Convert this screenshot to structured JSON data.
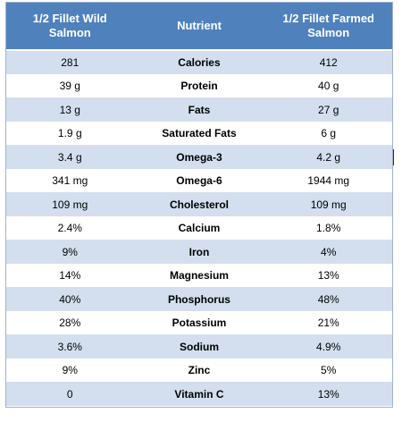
{
  "table": {
    "headers": [
      "1/2 Fillet Wild Salmon",
      "Nutrient",
      "1/2 Fillet Farmed Salmon"
    ],
    "rows": [
      [
        "281",
        "Calories",
        "412"
      ],
      [
        "39 g",
        "Protein",
        "40 g"
      ],
      [
        "13 g",
        "Fats",
        "27 g"
      ],
      [
        "1.9 g",
        "Saturated Fats",
        "6 g"
      ],
      [
        "3.4 g",
        "Omega-3",
        "4.2 g"
      ],
      [
        "341 mg",
        "Omega-6",
        "1944 mg"
      ],
      [
        "109 mg",
        "Cholesterol",
        "109 mg"
      ],
      [
        "2.4%",
        "Calcium",
        "1.8%"
      ],
      [
        "9%",
        "Iron",
        "4%"
      ],
      [
        "14%",
        "Magnesium",
        "13%"
      ],
      [
        "40%",
        "Phosphorus",
        "48%"
      ],
      [
        "28%",
        "Potassium",
        "21%"
      ],
      [
        "3.6%",
        "Sodium",
        "4.9%"
      ],
      [
        "9%",
        "Zinc",
        "5%"
      ],
      [
        "0",
        "Vitamin C",
        "13%"
      ]
    ]
  },
  "colors": {
    "header_bg": "#4f81bd",
    "stripe_bg": "#d3dfee",
    "border": "#9fb3cc"
  }
}
